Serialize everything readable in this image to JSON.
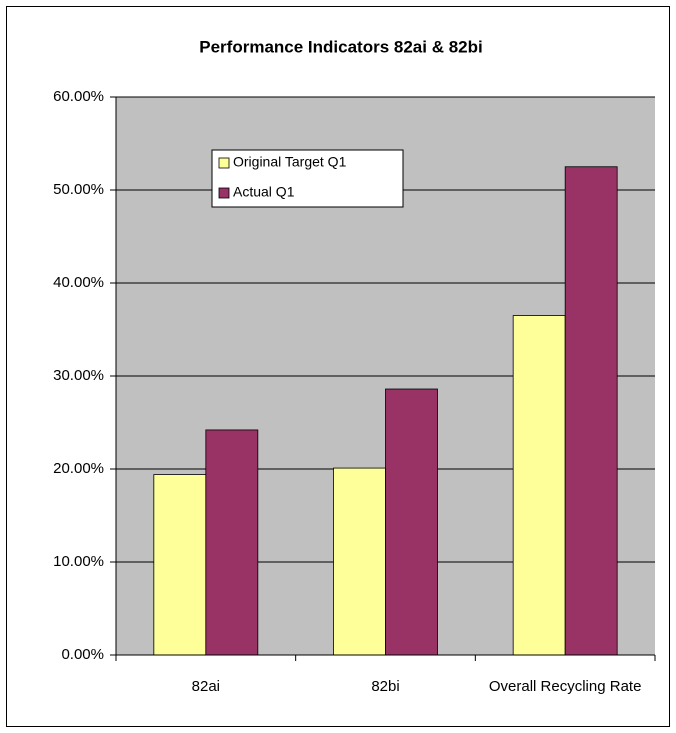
{
  "chart_data": {
    "type": "bar",
    "title": "Performance Indicators 82ai & 82bi",
    "categories": [
      "82ai",
      "82bi",
      "Overall Recycling Rate"
    ],
    "series": [
      {
        "name": "Original Target Q1",
        "color": "#ffff99",
        "values": [
          19.4,
          20.1,
          36.5
        ]
      },
      {
        "name": "Actual Q1",
        "color": "#993366",
        "values": [
          24.2,
          28.6,
          52.5
        ]
      }
    ],
    "ylim": [
      0,
      60
    ],
    "yticks": [
      {
        "value": 0,
        "label": "0.00%"
      },
      {
        "value": 10,
        "label": "10.00%"
      },
      {
        "value": 20,
        "label": "20.00%"
      },
      {
        "value": 30,
        "label": "30.00%"
      },
      {
        "value": 40,
        "label": "40.00%"
      },
      {
        "value": 50,
        "label": "50.00%"
      },
      {
        "value": 60,
        "label": "60.00%"
      }
    ],
    "grid": true,
    "plot_background": "#c0c0c0",
    "legend": "upper left"
  }
}
